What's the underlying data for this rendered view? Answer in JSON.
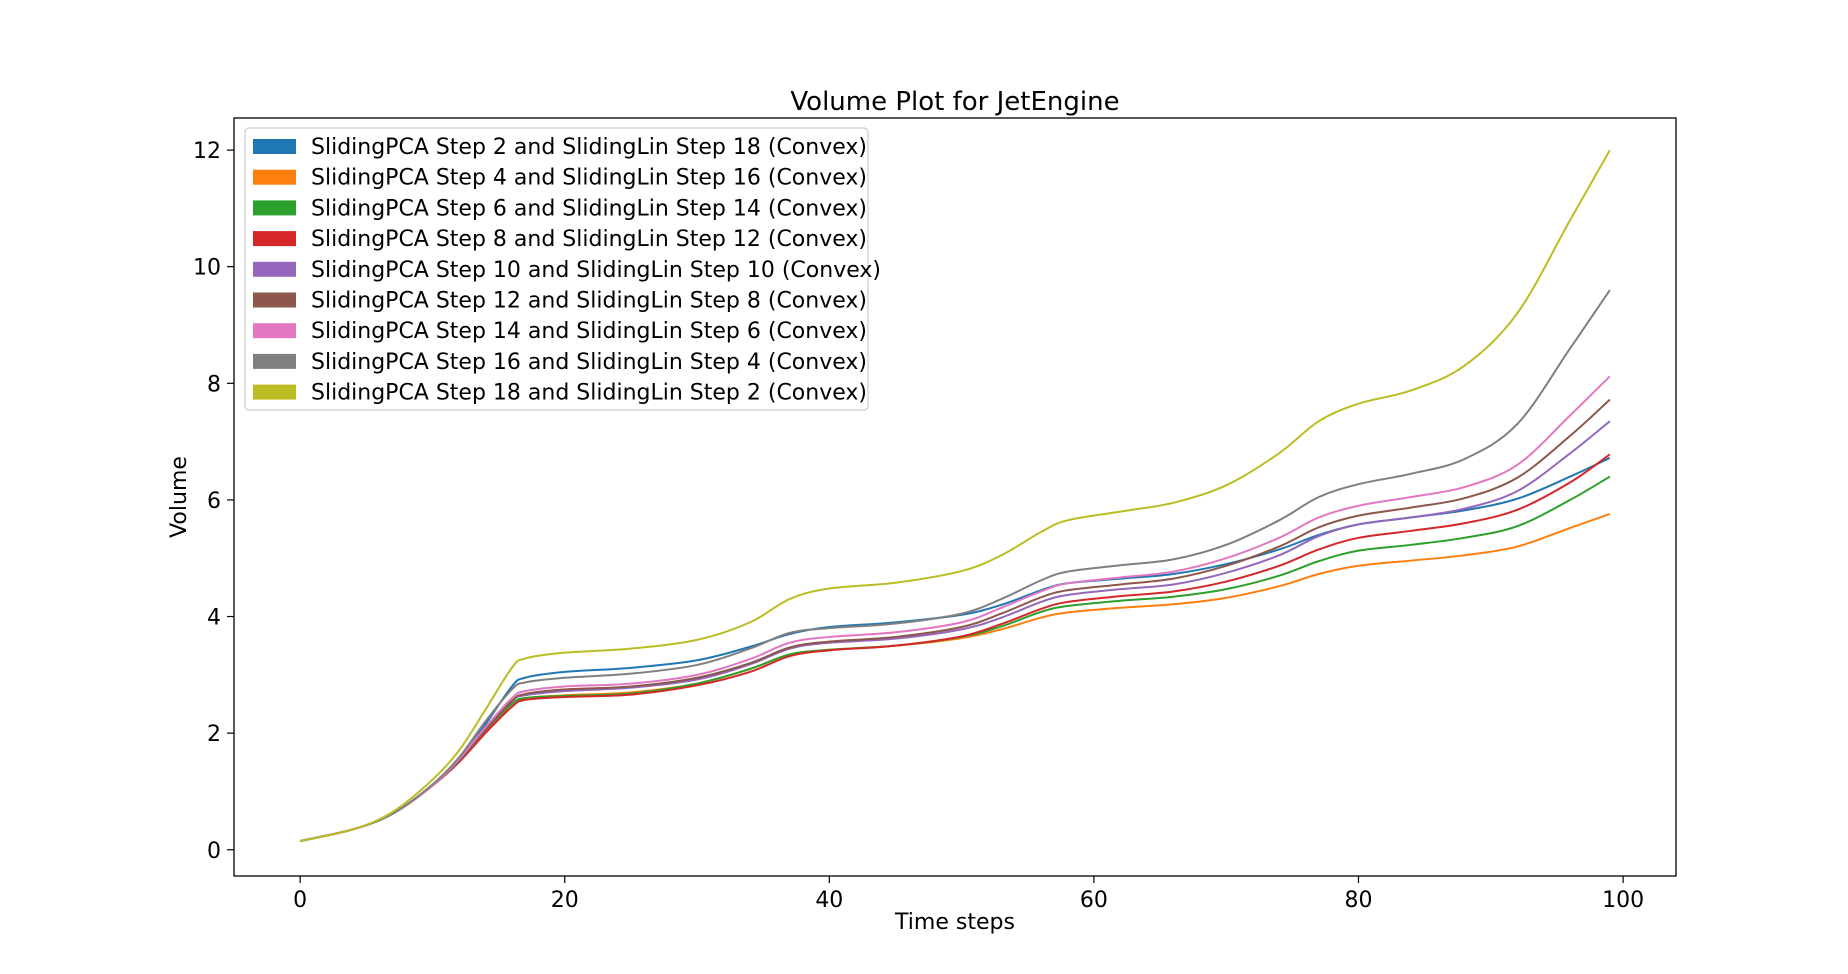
{
  "chart_data": {
    "type": "line",
    "title": "Volume Plot for JetEngine",
    "xlabel": "Time steps",
    "ylabel": "Volume",
    "xlim": [
      -5,
      104
    ],
    "ylim": [
      -0.45,
      12.55
    ],
    "xticks": [
      0,
      20,
      40,
      60,
      80,
      100
    ],
    "yticks": [
      0,
      2,
      4,
      6,
      8,
      10,
      12
    ],
    "grid": false,
    "legend_position": "upper-left",
    "series": [
      {
        "name": "SlidingPCA Step 2 and SlidingLin Step 18 (Convex)",
        "color": "#1f77b4",
        "points": [
          [
            0,
            0.15
          ],
          [
            4,
            0.35
          ],
          [
            7,
            0.62
          ],
          [
            10,
            1.1
          ],
          [
            12,
            1.55
          ],
          [
            14,
            2.15
          ],
          [
            16,
            2.8
          ],
          [
            17,
            2.95
          ],
          [
            20,
            3.05
          ],
          [
            25,
            3.12
          ],
          [
            30,
            3.25
          ],
          [
            34,
            3.48
          ],
          [
            37,
            3.7
          ],
          [
            40,
            3.82
          ],
          [
            45,
            3.9
          ],
          [
            50,
            4.03
          ],
          [
            53,
            4.2
          ],
          [
            56,
            4.45
          ],
          [
            58,
            4.57
          ],
          [
            62,
            4.65
          ],
          [
            66,
            4.73
          ],
          [
            70,
            4.9
          ],
          [
            74,
            5.15
          ],
          [
            77,
            5.4
          ],
          [
            80,
            5.58
          ],
          [
            84,
            5.7
          ],
          [
            88,
            5.82
          ],
          [
            92,
            6.02
          ],
          [
            96,
            6.4
          ],
          [
            99,
            6.72
          ]
        ]
      },
      {
        "name": "SlidingPCA Step 4 and SlidingLin Step 16 (Convex)",
        "color": "#ff7f0e",
        "points": [
          [
            0,
            0.15
          ],
          [
            4,
            0.35
          ],
          [
            7,
            0.62
          ],
          [
            10,
            1.1
          ],
          [
            12,
            1.55
          ],
          [
            14,
            2.05
          ],
          [
            16,
            2.5
          ],
          [
            17,
            2.6
          ],
          [
            20,
            2.65
          ],
          [
            25,
            2.7
          ],
          [
            30,
            2.85
          ],
          [
            34,
            3.1
          ],
          [
            37,
            3.35
          ],
          [
            40,
            3.43
          ],
          [
            45,
            3.5
          ],
          [
            50,
            3.63
          ],
          [
            53,
            3.78
          ],
          [
            56,
            3.98
          ],
          [
            58,
            4.07
          ],
          [
            62,
            4.15
          ],
          [
            66,
            4.21
          ],
          [
            70,
            4.32
          ],
          [
            74,
            4.52
          ],
          [
            77,
            4.73
          ],
          [
            80,
            4.87
          ],
          [
            84,
            4.96
          ],
          [
            88,
            5.05
          ],
          [
            92,
            5.2
          ],
          [
            96,
            5.52
          ],
          [
            99,
            5.76
          ]
        ]
      },
      {
        "name": "SlidingPCA Step 6 and SlidingLin Step 14 (Convex)",
        "color": "#2ca02c",
        "points": [
          [
            0,
            0.15
          ],
          [
            4,
            0.35
          ],
          [
            7,
            0.62
          ],
          [
            10,
            1.1
          ],
          [
            12,
            1.55
          ],
          [
            14,
            2.05
          ],
          [
            16,
            2.5
          ],
          [
            17,
            2.6
          ],
          [
            20,
            2.64
          ],
          [
            25,
            2.68
          ],
          [
            30,
            2.85
          ],
          [
            34,
            3.1
          ],
          [
            37,
            3.35
          ],
          [
            40,
            3.43
          ],
          [
            45,
            3.5
          ],
          [
            50,
            3.65
          ],
          [
            53,
            3.83
          ],
          [
            56,
            4.08
          ],
          [
            58,
            4.18
          ],
          [
            62,
            4.27
          ],
          [
            66,
            4.34
          ],
          [
            70,
            4.47
          ],
          [
            74,
            4.7
          ],
          [
            77,
            4.95
          ],
          [
            80,
            5.13
          ],
          [
            84,
            5.23
          ],
          [
            88,
            5.35
          ],
          [
            92,
            5.55
          ],
          [
            96,
            6.0
          ],
          [
            99,
            6.4
          ]
        ]
      },
      {
        "name": "SlidingPCA Step 8 and SlidingLin Step 12 (Convex)",
        "color": "#d62728",
        "points": [
          [
            0,
            0.15
          ],
          [
            4,
            0.35
          ],
          [
            7,
            0.62
          ],
          [
            10,
            1.1
          ],
          [
            12,
            1.5
          ],
          [
            14,
            2.0
          ],
          [
            16,
            2.45
          ],
          [
            17,
            2.57
          ],
          [
            20,
            2.62
          ],
          [
            25,
            2.66
          ],
          [
            30,
            2.82
          ],
          [
            34,
            3.05
          ],
          [
            37,
            3.32
          ],
          [
            40,
            3.42
          ],
          [
            45,
            3.5
          ],
          [
            50,
            3.66
          ],
          [
            53,
            3.87
          ],
          [
            56,
            4.13
          ],
          [
            58,
            4.25
          ],
          [
            62,
            4.35
          ],
          [
            66,
            4.43
          ],
          [
            70,
            4.6
          ],
          [
            74,
            4.87
          ],
          [
            77,
            5.15
          ],
          [
            80,
            5.35
          ],
          [
            84,
            5.47
          ],
          [
            88,
            5.6
          ],
          [
            92,
            5.83
          ],
          [
            96,
            6.3
          ],
          [
            99,
            6.78
          ]
        ]
      },
      {
        "name": "SlidingPCA Step 10 and SlidingLin Step 10 (Convex)",
        "color": "#9467bd",
        "points": [
          [
            0,
            0.15
          ],
          [
            4,
            0.35
          ],
          [
            7,
            0.62
          ],
          [
            10,
            1.1
          ],
          [
            12,
            1.52
          ],
          [
            14,
            2.05
          ],
          [
            16,
            2.55
          ],
          [
            17,
            2.65
          ],
          [
            20,
            2.72
          ],
          [
            25,
            2.78
          ],
          [
            30,
            2.92
          ],
          [
            34,
            3.18
          ],
          [
            37,
            3.45
          ],
          [
            40,
            3.55
          ],
          [
            45,
            3.62
          ],
          [
            50,
            3.78
          ],
          [
            53,
            3.98
          ],
          [
            56,
            4.25
          ],
          [
            58,
            4.37
          ],
          [
            62,
            4.47
          ],
          [
            66,
            4.55
          ],
          [
            70,
            4.75
          ],
          [
            74,
            5.05
          ],
          [
            77,
            5.38
          ],
          [
            80,
            5.58
          ],
          [
            84,
            5.7
          ],
          [
            88,
            5.85
          ],
          [
            92,
            6.15
          ],
          [
            96,
            6.8
          ],
          [
            99,
            7.35
          ]
        ]
      },
      {
        "name": "SlidingPCA Step 12 and SlidingLin Step 8 (Convex)",
        "color": "#8c564b",
        "points": [
          [
            0,
            0.15
          ],
          [
            4,
            0.35
          ],
          [
            7,
            0.62
          ],
          [
            10,
            1.1
          ],
          [
            12,
            1.52
          ],
          [
            14,
            2.05
          ],
          [
            16,
            2.55
          ],
          [
            17,
            2.67
          ],
          [
            20,
            2.75
          ],
          [
            25,
            2.8
          ],
          [
            30,
            2.95
          ],
          [
            34,
            3.2
          ],
          [
            37,
            3.47
          ],
          [
            40,
            3.57
          ],
          [
            45,
            3.65
          ],
          [
            50,
            3.82
          ],
          [
            53,
            4.05
          ],
          [
            56,
            4.33
          ],
          [
            58,
            4.45
          ],
          [
            62,
            4.55
          ],
          [
            66,
            4.65
          ],
          [
            70,
            4.87
          ],
          [
            74,
            5.2
          ],
          [
            77,
            5.53
          ],
          [
            80,
            5.73
          ],
          [
            84,
            5.87
          ],
          [
            88,
            6.03
          ],
          [
            92,
            6.38
          ],
          [
            96,
            7.1
          ],
          [
            99,
            7.72
          ]
        ]
      },
      {
        "name": "SlidingPCA Step 14 and SlidingLin Step 6 (Convex)",
        "color": "#e377c2",
        "points": [
          [
            0,
            0.15
          ],
          [
            4,
            0.35
          ],
          [
            7,
            0.62
          ],
          [
            10,
            1.1
          ],
          [
            12,
            1.55
          ],
          [
            14,
            2.1
          ],
          [
            16,
            2.6
          ],
          [
            17,
            2.72
          ],
          [
            20,
            2.8
          ],
          [
            25,
            2.85
          ],
          [
            30,
            3.0
          ],
          [
            34,
            3.27
          ],
          [
            37,
            3.55
          ],
          [
            40,
            3.65
          ],
          [
            45,
            3.73
          ],
          [
            50,
            3.9
          ],
          [
            53,
            4.15
          ],
          [
            56,
            4.43
          ],
          [
            58,
            4.57
          ],
          [
            62,
            4.67
          ],
          [
            66,
            4.77
          ],
          [
            70,
            5.0
          ],
          [
            74,
            5.35
          ],
          [
            77,
            5.7
          ],
          [
            80,
            5.9
          ],
          [
            84,
            6.05
          ],
          [
            88,
            6.22
          ],
          [
            92,
            6.6
          ],
          [
            96,
            7.45
          ],
          [
            99,
            8.12
          ]
        ]
      },
      {
        "name": "SlidingPCA Step 16 and SlidingLin Step 4 (Convex)",
        "color": "#7f7f7f",
        "points": [
          [
            0,
            0.15
          ],
          [
            4,
            0.35
          ],
          [
            7,
            0.62
          ],
          [
            10,
            1.12
          ],
          [
            12,
            1.58
          ],
          [
            14,
            2.2
          ],
          [
            16,
            2.75
          ],
          [
            17,
            2.87
          ],
          [
            20,
            2.95
          ],
          [
            25,
            3.02
          ],
          [
            30,
            3.17
          ],
          [
            34,
            3.45
          ],
          [
            37,
            3.72
          ],
          [
            40,
            3.8
          ],
          [
            45,
            3.88
          ],
          [
            50,
            4.05
          ],
          [
            53,
            4.3
          ],
          [
            56,
            4.62
          ],
          [
            58,
            4.77
          ],
          [
            62,
            4.88
          ],
          [
            66,
            4.98
          ],
          [
            70,
            5.23
          ],
          [
            74,
            5.65
          ],
          [
            77,
            6.05
          ],
          [
            80,
            6.27
          ],
          [
            84,
            6.45
          ],
          [
            88,
            6.7
          ],
          [
            92,
            7.3
          ],
          [
            96,
            8.6
          ],
          [
            99,
            9.6
          ]
        ]
      },
      {
        "name": "SlidingPCA Step 18 and SlidingLin Step 2 (Convex)",
        "color": "#bcbd22",
        "points": [
          [
            0,
            0.15
          ],
          [
            4,
            0.35
          ],
          [
            7,
            0.65
          ],
          [
            10,
            1.2
          ],
          [
            12,
            1.7
          ],
          [
            14,
            2.4
          ],
          [
            16,
            3.12
          ],
          [
            17,
            3.28
          ],
          [
            20,
            3.38
          ],
          [
            25,
            3.45
          ],
          [
            30,
            3.6
          ],
          [
            34,
            3.9
          ],
          [
            37,
            4.3
          ],
          [
            40,
            4.48
          ],
          [
            45,
            4.58
          ],
          [
            50,
            4.78
          ],
          [
            53,
            5.05
          ],
          [
            56,
            5.45
          ],
          [
            58,
            5.65
          ],
          [
            62,
            5.8
          ],
          [
            66,
            5.95
          ],
          [
            70,
            6.25
          ],
          [
            74,
            6.8
          ],
          [
            77,
            7.35
          ],
          [
            80,
            7.65
          ],
          [
            84,
            7.88
          ],
          [
            88,
            8.3
          ],
          [
            92,
            9.2
          ],
          [
            96,
            10.8
          ],
          [
            99,
            12.0
          ]
        ]
      }
    ]
  }
}
